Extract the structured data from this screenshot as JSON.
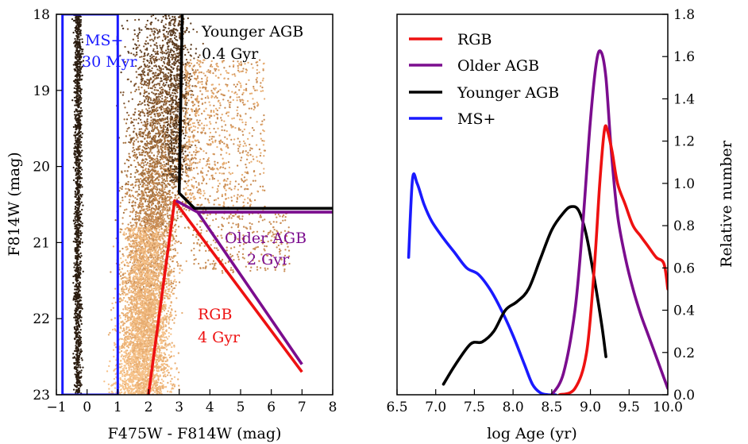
{
  "chart_data": [
    {
      "type": "scatter",
      "panel": "left",
      "xlabel": "F475W - F814W (mag)",
      "ylabel": "F814W (mag)",
      "xlim": [
        -1,
        8
      ],
      "ylim": [
        23,
        18
      ],
      "x_ticks": [
        "−1",
        "0",
        "1",
        "2",
        "3",
        "4",
        "5",
        "6",
        "7",
        "8"
      ],
      "y_ticks": [
        "18",
        "19",
        "20",
        "21",
        "22",
        "23"
      ],
      "regions": [
        {
          "name": "MS+",
          "age_label": "30 Myr",
          "color": "#1a1aff",
          "points": [
            [
              -0.8,
              23
            ],
            [
              -0.8,
              18
            ],
            [
              1.0,
              18
            ],
            [
              1.0,
              23
            ],
            [
              -0.8,
              23
            ]
          ]
        },
        {
          "name": "Younger AGB",
          "age_label": "0.4 Gyr",
          "color": "#000000",
          "points": [
            [
              3.1,
              18
            ],
            [
              3.0,
              20.35
            ],
            [
              3.5,
              20.55
            ],
            [
              8,
              20.55
            ]
          ]
        },
        {
          "name": "Older AGB",
          "age_label": "2 Gyr",
          "color": "#7b0d8e",
          "points": [
            [
              2.9,
              20.45
            ],
            [
              3.6,
              20.6
            ],
            [
              8,
              20.6
            ],
            [
              3.6,
              20.6
            ],
            [
              7.0,
              22.6
            ]
          ]
        },
        {
          "name": "RGB",
          "age_label": "4 Gyr",
          "color": "#ee1111",
          "points": [
            [
              2.0,
              23
            ],
            [
              2.85,
              20.45
            ],
            [
              3.3,
              20.7
            ],
            [
              7.0,
              22.7
            ]
          ]
        }
      ],
      "star_colors": [
        "#2b1d10",
        "#5a3b20",
        "#7d532e",
        "#a5713f",
        "#c98d55",
        "#e7ad72",
        "#f6c28a"
      ]
    },
    {
      "type": "line",
      "panel": "right",
      "xlabel": "log Age (yr)",
      "ylabel": "Relative number",
      "xlim": [
        6.5,
        10.0
      ],
      "ylim": [
        0.0,
        1.8
      ],
      "x_ticks": [
        "6.5",
        "7.0",
        "7.5",
        "8.0",
        "8.5",
        "9.0",
        "9.5",
        "10.0"
      ],
      "y_ticks": [
        "0.0",
        "0.2",
        "0.4",
        "0.6",
        "0.8",
        "1.0",
        "1.2",
        "1.4",
        "1.6",
        "1.8"
      ],
      "legend_position": "top-left",
      "series": [
        {
          "name": "RGB",
          "color": "#ee1111",
          "x": [
            8.6,
            8.8,
            8.95,
            9.05,
            9.12,
            9.18,
            9.22,
            9.28,
            9.35,
            9.45,
            9.55,
            9.65,
            9.75,
            9.85,
            9.95,
            10.0
          ],
          "y": [
            0.0,
            0.03,
            0.2,
            0.6,
            1.0,
            1.25,
            1.25,
            1.15,
            1.0,
            0.9,
            0.8,
            0.75,
            0.7,
            0.65,
            0.62,
            0.5
          ]
        },
        {
          "name": "Older AGB",
          "color": "#7b0d8e",
          "x": [
            8.5,
            8.65,
            8.8,
            8.9,
            9.0,
            9.08,
            9.14,
            9.2,
            9.27,
            9.35,
            9.45,
            9.55,
            9.65,
            9.75,
            9.85,
            9.95,
            10.0
          ],
          "y": [
            0.0,
            0.1,
            0.4,
            0.8,
            1.3,
            1.58,
            1.62,
            1.5,
            1.15,
            0.85,
            0.65,
            0.5,
            0.38,
            0.28,
            0.18,
            0.08,
            0.03
          ]
        },
        {
          "name": "Younger AGB",
          "color": "#000000",
          "x": [
            7.1,
            7.25,
            7.45,
            7.6,
            7.75,
            7.9,
            8.05,
            8.2,
            8.35,
            8.5,
            8.65,
            8.75,
            8.85,
            8.95,
            9.05,
            9.15,
            9.2
          ],
          "y": [
            0.05,
            0.14,
            0.24,
            0.25,
            0.3,
            0.4,
            0.44,
            0.5,
            0.64,
            0.78,
            0.86,
            0.89,
            0.87,
            0.75,
            0.55,
            0.32,
            0.18
          ]
        },
        {
          "name": "MS+",
          "color": "#1a1aff",
          "x": [
            6.65,
            6.7,
            6.76,
            6.85,
            6.95,
            7.1,
            7.25,
            7.4,
            7.55,
            7.7,
            7.85,
            8.0,
            8.15,
            8.25,
            8.35,
            8.45,
            8.55
          ],
          "y": [
            0.65,
            1.02,
            1.0,
            0.9,
            0.82,
            0.74,
            0.67,
            0.6,
            0.57,
            0.5,
            0.4,
            0.28,
            0.14,
            0.05,
            0.01,
            0.0,
            0.0
          ]
        }
      ]
    }
  ]
}
